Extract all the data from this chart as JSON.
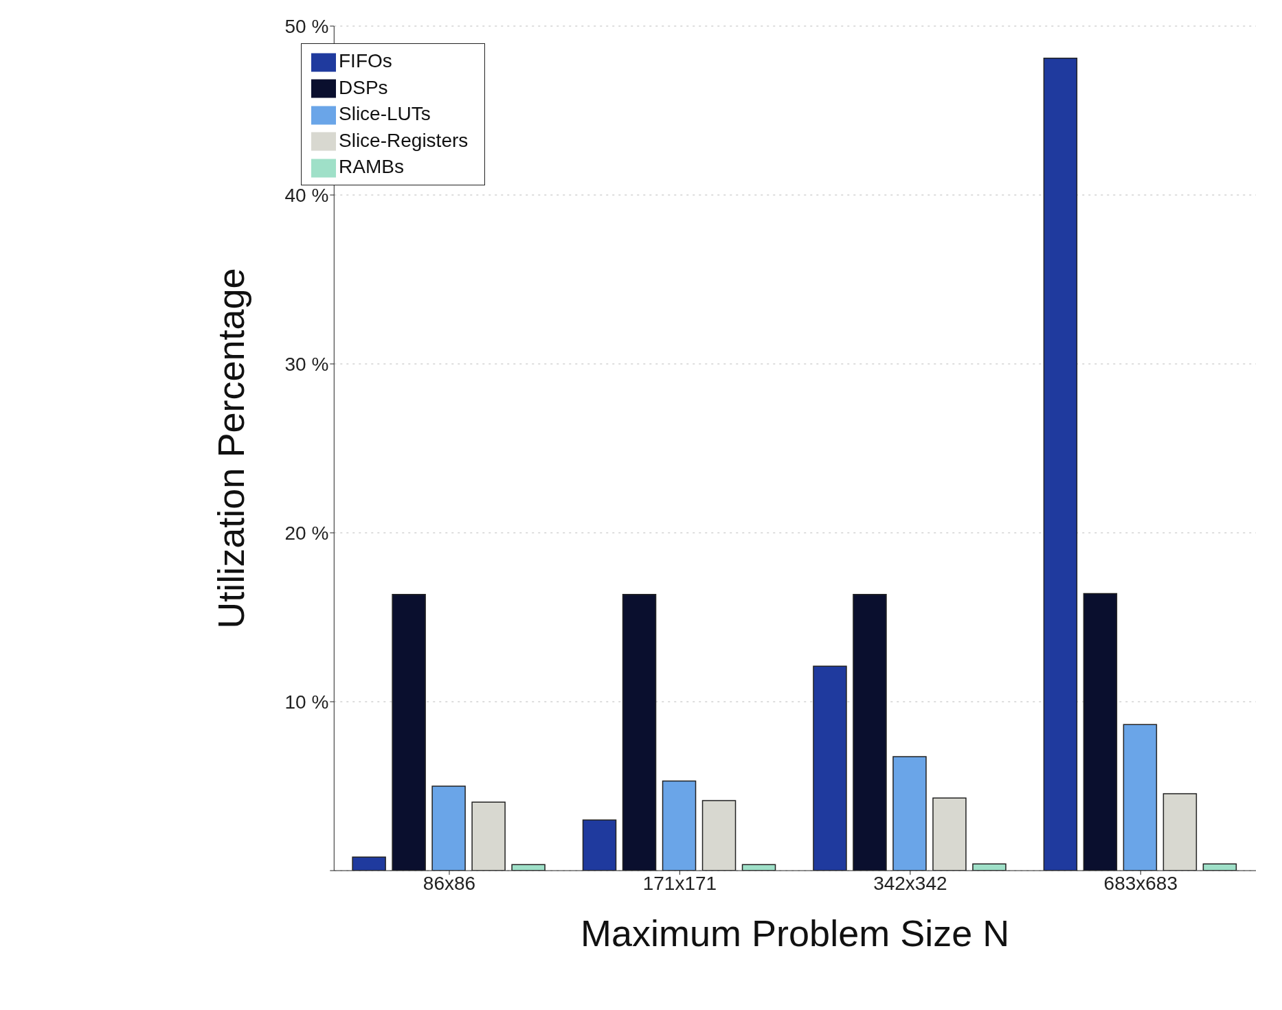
{
  "chart_data": {
    "type": "bar",
    "xlabel": "Maximum Problem Size N",
    "ylabel": "Utilization Percentage",
    "categories": [
      "86x86",
      "171x171",
      "342x342",
      "683x683"
    ],
    "series": [
      {
        "name": "FIFOs",
        "color": "#1f3a9e",
        "values": [
          0.8,
          3.0,
          12.1,
          48.1
        ]
      },
      {
        "name": "DSPs",
        "color": "#0a0f2e",
        "values": [
          16.35,
          16.35,
          16.35,
          16.4
        ]
      },
      {
        "name": "Slice-LUTs",
        "color": "#6aa5e8",
        "values": [
          5.0,
          5.3,
          6.75,
          8.65
        ]
      },
      {
        "name": "Slice-Registers",
        "color": "#d8d8d0",
        "values": [
          4.05,
          4.15,
          4.3,
          4.55
        ]
      },
      {
        "name": "RAMBs",
        "color": "#9fe0c8",
        "values": [
          0.36,
          0.36,
          0.4,
          0.4
        ]
      }
    ],
    "ylim": [
      0,
      50
    ],
    "yticks": [
      {
        "value": 0,
        "label": null
      },
      {
        "value": 10,
        "label": "10 %"
      },
      {
        "value": 20,
        "label": "20 %"
      },
      {
        "value": 30,
        "label": "30 %"
      },
      {
        "value": 40,
        "label": "40 %"
      },
      {
        "value": 50,
        "label": "50 %"
      }
    ],
    "grid": "y",
    "legend": "top left"
  }
}
